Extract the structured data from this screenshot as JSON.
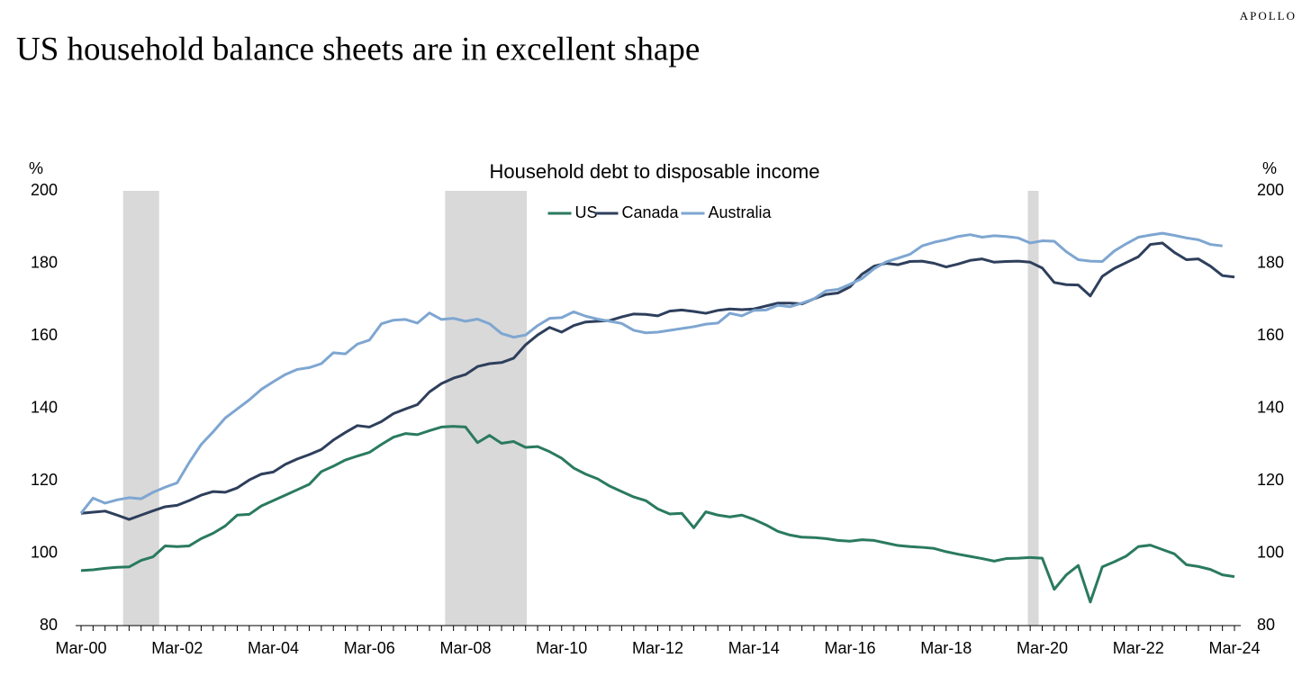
{
  "chart_data": {
    "type": "line",
    "brand": "APOLLO",
    "title": "US household balance sheets are in excellent shape",
    "subtitle": "Household debt to disposable income",
    "y_unit": "%",
    "y2_unit": "%",
    "categories": [
      "Mar-00",
      null,
      null,
      null,
      null,
      null,
      null,
      null,
      "Mar-02",
      null,
      null,
      null,
      null,
      null,
      null,
      null,
      "Mar-04",
      null,
      null,
      null,
      null,
      null,
      null,
      null,
      "Mar-06",
      null,
      null,
      null,
      null,
      null,
      null,
      null,
      "Mar-08",
      null,
      null,
      null,
      null,
      null,
      null,
      null,
      "Mar-10",
      null,
      null,
      null,
      null,
      null,
      null,
      null,
      "Mar-12",
      null,
      null,
      null,
      null,
      null,
      null,
      null,
      "Mar-14",
      null,
      null,
      null,
      null,
      null,
      null,
      null,
      "Mar-16",
      null,
      null,
      null,
      null,
      null,
      null,
      null,
      "Mar-18",
      null,
      null,
      null,
      null,
      null,
      null,
      null,
      "Mar-20",
      null,
      null,
      null,
      null,
      null,
      null,
      null,
      "Mar-22",
      null,
      null,
      null,
      null,
      null,
      null,
      null,
      "Mar-24"
    ],
    "series": [
      {
        "name": "US",
        "color": "#2a7a5f",
        "values": [
          95.2,
          95.4,
          95.8,
          96.1,
          96.2,
          98,
          99,
          102,
          101.8,
          102,
          104,
          105.5,
          107.5,
          110.5,
          110.7,
          113,
          114.5,
          116,
          117.5,
          119,
          122.5,
          124,
          125.7,
          126.8,
          127.8,
          130,
          132,
          133,
          132.7,
          133.8,
          134.8,
          135,
          134.8,
          130.5,
          132.5,
          130.3,
          130.8,
          129.2,
          129.4,
          128,
          126.2,
          123.5,
          121.8,
          120.5,
          118.5,
          117,
          115.5,
          114.5,
          112.2,
          110.8,
          111,
          107,
          111.4,
          110.5,
          110,
          110.5,
          109.3,
          107.8,
          106,
          105,
          104.4,
          104.3,
          104,
          103.5,
          103.3,
          103.7,
          103.5,
          102.8,
          102.1,
          101.8,
          101.6,
          101.3,
          100.4,
          99.7,
          99.1,
          98.5,
          97.8,
          98.5,
          98.6,
          98.8,
          98.6,
          90,
          94,
          96.6,
          86.5,
          96.2,
          97.6,
          99.2,
          101.8,
          102.2,
          101,
          99.8,
          96.8,
          96.3,
          95.5,
          94,
          93.5
        ]
      },
      {
        "name": "Canada",
        "color": "#2e3f5c",
        "values": [
          111,
          111.3,
          111.6,
          110.5,
          109.3,
          110.5,
          111.7,
          112.8,
          113.2,
          114.5,
          116,
          117,
          116.8,
          118,
          120.2,
          121.8,
          122.4,
          124.5,
          126,
          127.2,
          128.6,
          131.2,
          133.3,
          135.2,
          134.8,
          136.3,
          138.5,
          139.8,
          141,
          144.5,
          146.8,
          148.3,
          149.3,
          151.5,
          152.3,
          152.6,
          153.8,
          157.5,
          160.2,
          162.3,
          161,
          162.8,
          163.8,
          164,
          164.2,
          165.2,
          166,
          165.9,
          165.5,
          166.8,
          167.1,
          166.7,
          166.2,
          167,
          167.4,
          167.2,
          167.4,
          168.2,
          169,
          169,
          168.8,
          170.2,
          171.4,
          171.8,
          173.5,
          177,
          179.2,
          180,
          179.6,
          180.5,
          180.6,
          180,
          179,
          179.8,
          180.8,
          181.2,
          180.3,
          180.5,
          180.6,
          180.3,
          178.7,
          174.7,
          174.1,
          174,
          171,
          176.4,
          178.6,
          180.2,
          181.8,
          185.2,
          185.6,
          183,
          181,
          181.2,
          179.2,
          176.6,
          176.2
        ]
      },
      {
        "name": "Australia",
        "color": "#7ea6d1",
        "values": [
          111,
          115.2,
          113.8,
          114.7,
          115.3,
          115,
          116.8,
          118.2,
          119.4,
          125,
          130,
          133.5,
          137.3,
          139.8,
          142.3,
          145.2,
          147.3,
          149.3,
          150.7,
          151.2,
          152.3,
          155.3,
          155,
          157.7,
          158.8,
          163.3,
          164.3,
          164.5,
          163.5,
          166.3,
          164.5,
          164.8,
          164,
          164.6,
          163.3,
          160.6,
          159.6,
          160.2,
          162.8,
          164.8,
          165,
          166.6,
          165.4,
          164.6,
          164,
          163.4,
          161.5,
          160.8,
          161,
          161.5,
          162,
          162.5,
          163.2,
          163.5,
          166.2,
          165.5,
          167,
          167.1,
          168.4,
          168,
          169,
          170.2,
          172.4,
          172.8,
          174.2,
          175.8,
          178.5,
          180.4,
          181.4,
          182.5,
          184.8,
          185.8,
          186.5,
          187.4,
          187.9,
          187.2,
          187.6,
          187.4,
          187,
          185.6,
          186.2,
          186.1,
          183.2,
          181,
          180.6,
          180.5,
          183.4,
          185.4,
          187.2,
          187.8,
          188.3,
          187.7,
          187,
          186.5,
          185.2,
          184.8,
          null
        ]
      }
    ],
    "shaded_regions": [
      {
        "start": 3.5,
        "end": 6.5
      },
      {
        "start": 30.3,
        "end": 37.1
      },
      {
        "start": 78.8,
        "end": 79.7
      }
    ],
    "shade_color": "#d9d9d9",
    "ylim": [
      80,
      200
    ],
    "yticks": [
      80,
      100,
      120,
      140,
      160,
      180,
      200
    ],
    "y2lim": [
      80,
      200
    ],
    "y2ticks": [
      80,
      100,
      120,
      140,
      160,
      180,
      200
    ],
    "legend": "top"
  }
}
